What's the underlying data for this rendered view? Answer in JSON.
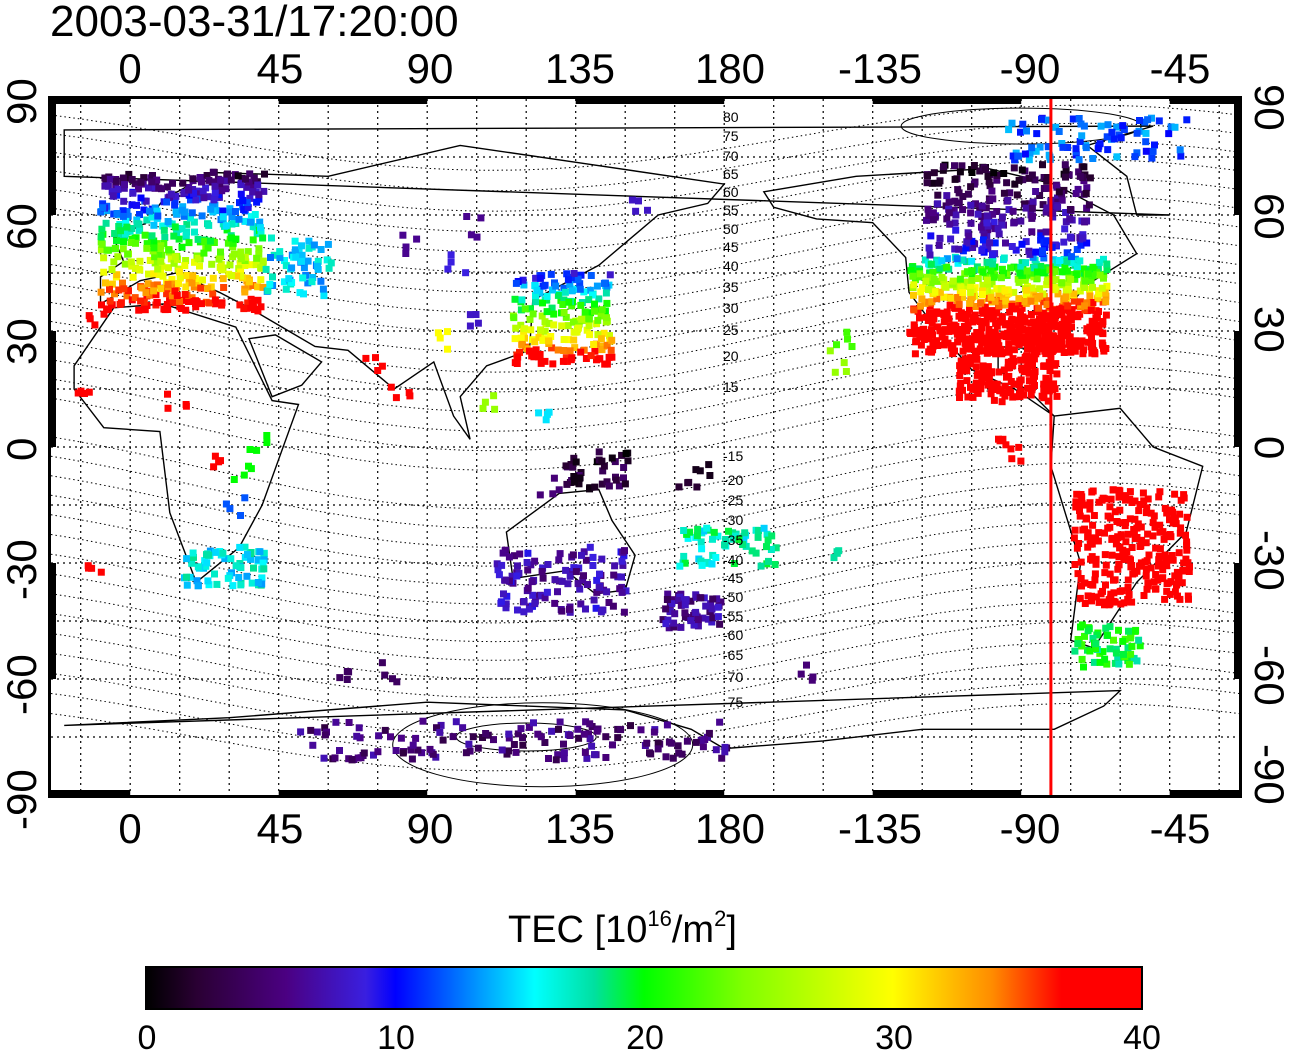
{
  "title": "2003-03-31/17:20:00",
  "x_tick_labels": [
    "0",
    "45",
    "90",
    "135",
    "180",
    "-135",
    "-90",
    "-45"
  ],
  "y_tick_labels": [
    "90",
    "60",
    "30",
    "0",
    "-30",
    "-60",
    "-90"
  ],
  "contour_labels": [
    "80",
    "75",
    "70",
    "65",
    "60",
    "55",
    "50",
    "45",
    "40",
    "35",
    "30",
    "25",
    "20",
    "15",
    "-15",
    "-20",
    "-25",
    "-30",
    "-35",
    "-40",
    "-45",
    "-50",
    "-55",
    "-60",
    "-65",
    "-70",
    "-75"
  ],
  "colorbar": {
    "title_prefix": "TEC  [10",
    "title_exp1": "16",
    "title_mid": "/m",
    "title_exp2": "2",
    "title_suffix": "]",
    "ticks": [
      "0",
      "10",
      "20",
      "30",
      "40"
    ],
    "range": [
      0,
      40
    ]
  },
  "map": {
    "projection": "equirectangular",
    "lon_range": [
      -24,
      336
    ],
    "lat_range": [
      -90,
      90
    ],
    "meridian_marker_lon": -81,
    "marker_color": "#ff0000"
  }
}
